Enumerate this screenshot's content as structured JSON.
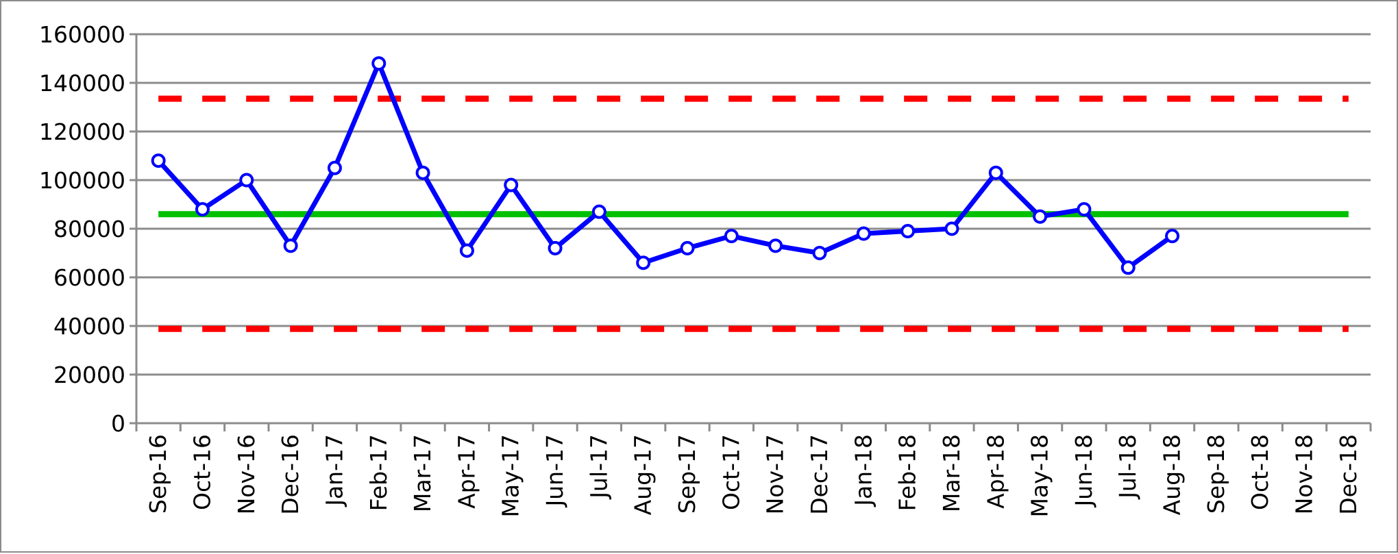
{
  "chart_data": {
    "type": "line",
    "title": "",
    "xlabel": "",
    "ylabel": "",
    "ylim": [
      0,
      160000
    ],
    "yticks": [
      0,
      20000,
      40000,
      60000,
      80000,
      100000,
      120000,
      140000,
      160000
    ],
    "grid": "horizontal",
    "legend": "none",
    "categories": [
      "Sep-16",
      "Oct-16",
      "Nov-16",
      "Dec-16",
      "Jan-17",
      "Feb-17",
      "Mar-17",
      "Apr-17",
      "May-17",
      "Jun-17",
      "Jul-17",
      "Aug-17",
      "Sep-17",
      "Oct-17",
      "Nov-17",
      "Dec-17",
      "Jan-18",
      "Feb-18",
      "Mar-18",
      "Apr-18",
      "May-18",
      "Jun-18",
      "Jul-18",
      "Aug-18",
      "Sep-18",
      "Oct-18",
      "Nov-18",
      "Dec-18"
    ],
    "series": [
      {
        "role": "measurements",
        "style": "solid-line-with-open-circle-markers",
        "color": "#0000ff",
        "values": [
          108000,
          88000,
          100000,
          73000,
          105000,
          148000,
          103000,
          71000,
          98000,
          72000,
          87000,
          66000,
          72000,
          77000,
          73000,
          70000,
          78000,
          79000,
          80000,
          103000,
          85000,
          88000,
          64000,
          77000,
          null,
          null,
          null,
          null
        ]
      },
      {
        "role": "center-line",
        "style": "solid",
        "color": "#00c000",
        "constant": 86000
      },
      {
        "role": "upper-limit",
        "style": "dashed",
        "color": "#ff0000",
        "constant": 133500
      },
      {
        "role": "lower-limit",
        "style": "dashed",
        "color": "#ff0000",
        "constant": 38800
      }
    ]
  }
}
